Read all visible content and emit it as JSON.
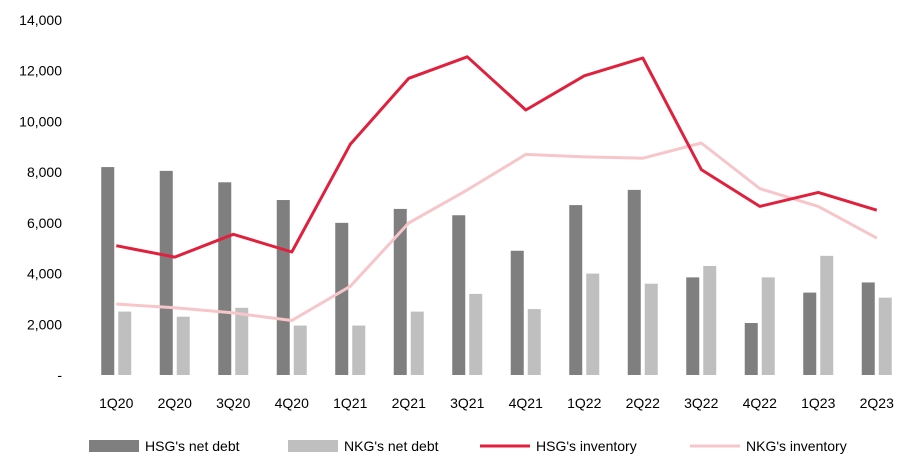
{
  "chart_data": {
    "type": "bar",
    "categories": [
      "1Q20",
      "2Q20",
      "3Q20",
      "4Q20",
      "1Q21",
      "2Q21",
      "3Q21",
      "4Q21",
      "1Q22",
      "2Q22",
      "3Q22",
      "4Q22",
      "1Q23",
      "2Q23"
    ],
    "ylim": [
      0,
      14000
    ],
    "yticks": [
      {
        "value": 0,
        "label": "-"
      },
      {
        "value": 2000,
        "label": "2,000"
      },
      {
        "value": 4000,
        "label": "4,000"
      },
      {
        "value": 6000,
        "label": "6,000"
      },
      {
        "value": 8000,
        "label": "8,000"
      },
      {
        "value": 10000,
        "label": "10,000"
      },
      {
        "value": 12000,
        "label": "12,000"
      },
      {
        "value": 14000,
        "label": "14,000"
      }
    ],
    "grid": false,
    "legend_position": "bottom",
    "series": [
      {
        "name": "HSG's net debt",
        "type": "bar",
        "color": "#7f7f7f",
        "values": [
          8200,
          8050,
          7600,
          6900,
          6000,
          6550,
          6300,
          4900,
          6700,
          7300,
          3850,
          2050,
          3250,
          3650
        ]
      },
      {
        "name": "NKG's net debt",
        "type": "bar",
        "color": "#bfbfbf",
        "values": [
          2500,
          2300,
          2650,
          1950,
          1950,
          2500,
          3200,
          2600,
          4000,
          3600,
          4300,
          3850,
          4700,
          3050
        ]
      },
      {
        "name": "HSG's inventory",
        "type": "line",
        "color": "#e0213e",
        "values": [
          5100,
          4650,
          5550,
          4850,
          9100,
          11700,
          12550,
          10450,
          11800,
          12500,
          8100,
          6650,
          7200,
          6500
        ]
      },
      {
        "name": "NKG's inventory",
        "type": "line",
        "color": "#f7c6cb",
        "values": [
          2800,
          2650,
          2450,
          2150,
          3500,
          6000,
          7300,
          8700,
          8600,
          8550,
          9150,
          7350,
          6650,
          5400
        ]
      }
    ]
  }
}
